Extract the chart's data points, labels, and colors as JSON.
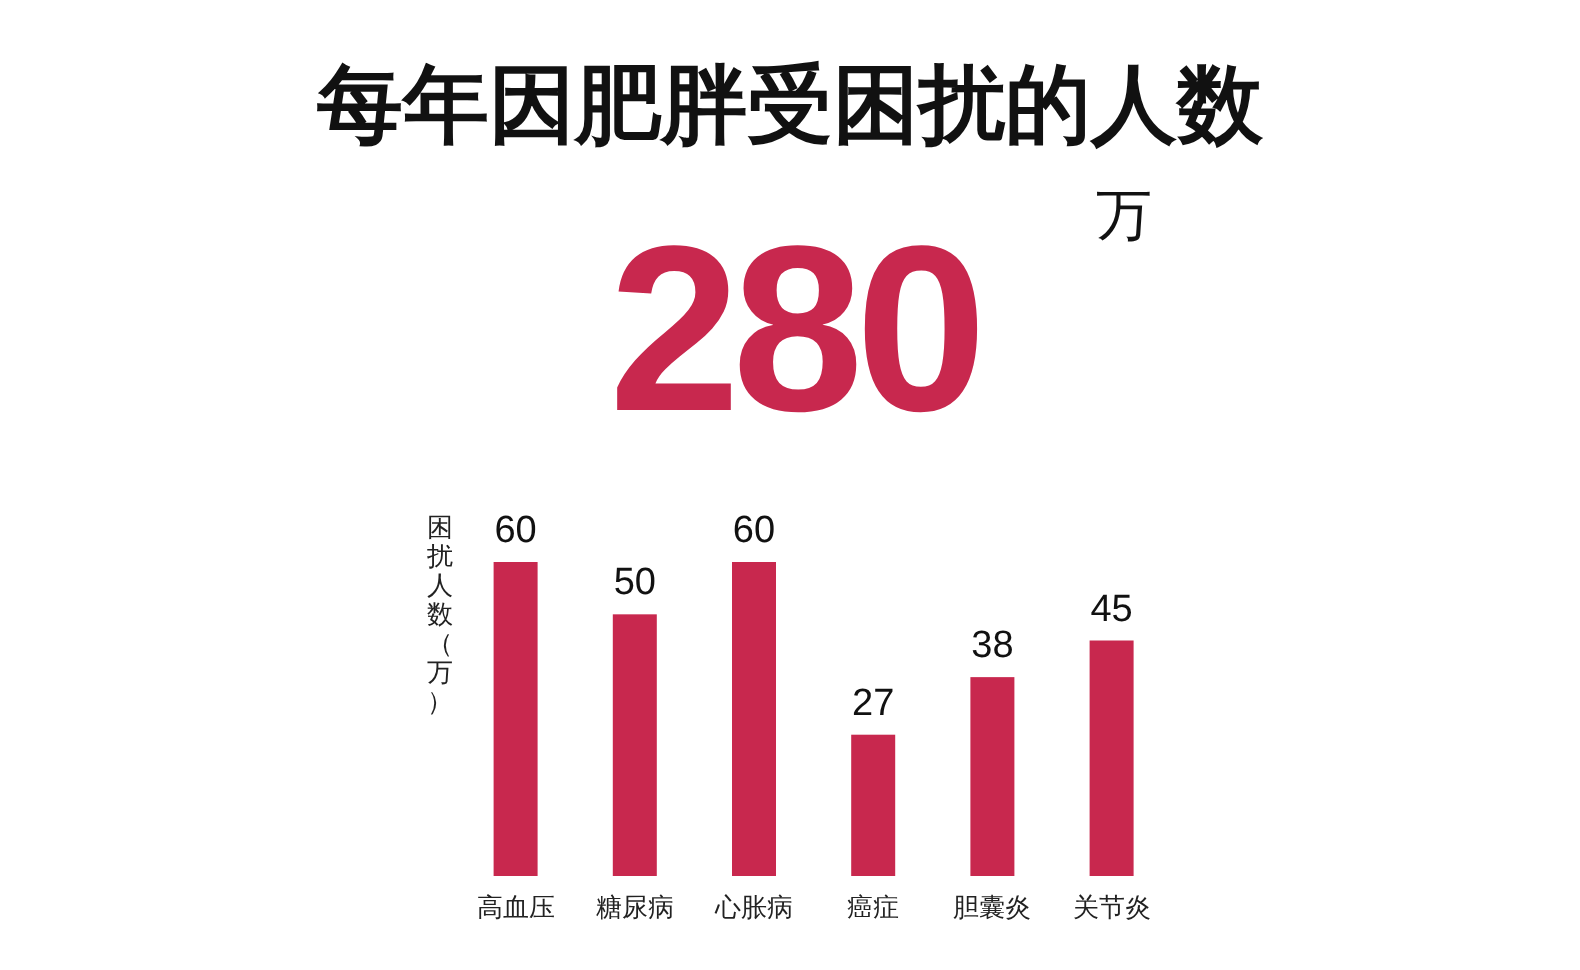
{
  "chart_data": {
    "type": "bar",
    "title": "每年因肥胖受困扰的人数",
    "ylabel": "困扰人数（万）",
    "annotations": [
      "280",
      "万"
    ],
    "categories": [
      "高血压",
      "糖尿病",
      "心胀病",
      "癌症",
      "胆囊炎",
      "关节炎"
    ],
    "series": [
      {
        "color": "#c8284e",
        "values": [
          60,
          50,
          60,
          27,
          38,
          45
        ]
      }
    ],
    "data_labels": true
  }
}
